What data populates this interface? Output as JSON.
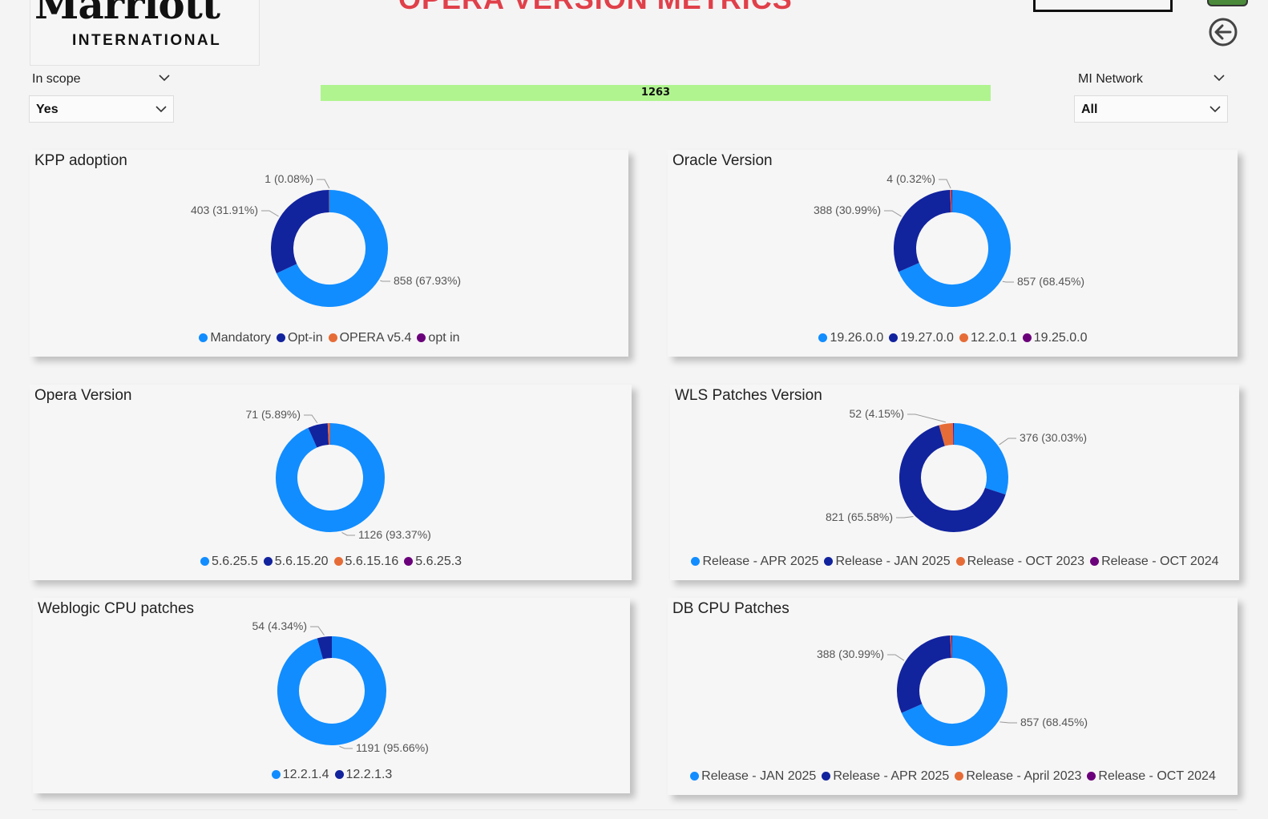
{
  "header": {
    "logo_script": "Marriott",
    "logo_sub": "INTERNATIONAL",
    "title": "OPERA VERSION METRICS"
  },
  "slicers": {
    "in_scope": {
      "label": "In scope",
      "value": "Yes"
    },
    "mi_network": {
      "label": "MI Network",
      "value": "All"
    }
  },
  "count_bar": {
    "value": "1263",
    "color": "#b0f48f"
  },
  "colors": {
    "light_blue": "#118dff",
    "dark_blue": "#12239e",
    "orange": "#e66c37",
    "purple": "#6b007b",
    "title_red": "#e0404a"
  },
  "panels": [
    {
      "id": "kpp",
      "title": "KPP adoption",
      "chart_data": {
        "type": "pie",
        "donut": true,
        "title": "KPP adoption",
        "categories": [
          "Mandatory",
          "Opt-in",
          "OPERA v5.4",
          "opt in"
        ],
        "values": [
          858,
          403,
          1,
          0
        ],
        "colors": [
          "#118dff",
          "#12239e",
          "#e66c37",
          "#6b007b"
        ],
        "data_labels": [
          "858 (67.93%)",
          "403 (31.91%)",
          "1 (0.08%)",
          null
        ]
      }
    },
    {
      "id": "oracle",
      "title": "Oracle Version",
      "chart_data": {
        "type": "pie",
        "donut": true,
        "title": "Oracle Version",
        "categories": [
          "19.26.0.0",
          "19.27.0.0",
          "12.2.0.1",
          "19.25.0.0"
        ],
        "values": [
          857,
          388,
          4,
          3
        ],
        "colors": [
          "#118dff",
          "#12239e",
          "#e66c37",
          "#6b007b"
        ],
        "data_labels": [
          "857 (68.45%)",
          "388 (30.99%)",
          "4 (0.32%)",
          null
        ]
      }
    },
    {
      "id": "opera",
      "title": "Opera Version",
      "chart_data": {
        "type": "pie",
        "donut": true,
        "title": "Opera Version",
        "categories": [
          "5.6.25.5",
          "5.6.15.20",
          "5.6.15.16",
          "5.6.25.3"
        ],
        "values": [
          1126,
          71,
          8,
          1
        ],
        "colors": [
          "#118dff",
          "#12239e",
          "#e66c37",
          "#6b007b"
        ],
        "data_labels": [
          "1126 (93.37%)",
          "71 (5.89%)",
          null,
          null
        ]
      }
    },
    {
      "id": "wls",
      "title": "WLS Patches Version",
      "chart_data": {
        "type": "pie",
        "donut": true,
        "title": "WLS Patches Version",
        "categories": [
          "Release - APR 2025",
          "Release - JAN 2025",
          "Release - OCT 2023",
          "Release - OCT 2024"
        ],
        "values": [
          376,
          821,
          52,
          3
        ],
        "colors": [
          "#118dff",
          "#12239e",
          "#e66c37",
          "#6b007b"
        ],
        "data_labels": [
          "376 (30.03%)",
          "821 (65.58%)",
          "52 (4.15%)",
          null
        ]
      }
    },
    {
      "id": "weblogic",
      "title": "Weblogic CPU patches",
      "chart_data": {
        "type": "pie",
        "donut": true,
        "title": "Weblogic CPU patches",
        "categories": [
          "12.2.1.4",
          "12.2.1.3"
        ],
        "values": [
          1191,
          54
        ],
        "colors": [
          "#118dff",
          "#12239e"
        ],
        "data_labels": [
          "1191 (95.66%)",
          "54 (4.34%)"
        ]
      }
    },
    {
      "id": "db",
      "title": "DB CPU Patches",
      "chart_data": {
        "type": "pie",
        "donut": true,
        "title": "DB CPU Patches",
        "categories": [
          "Release - JAN 2025",
          "Release - APR 2025",
          "Release - April 2023",
          "Release - OCT 2024"
        ],
        "values": [
          857,
          388,
          4,
          3
        ],
        "colors": [
          "#118dff",
          "#12239e",
          "#e66c37",
          "#6b007b"
        ],
        "data_labels": [
          "857 (68.45%)",
          "388 (30.99%)",
          null,
          null
        ]
      }
    }
  ]
}
